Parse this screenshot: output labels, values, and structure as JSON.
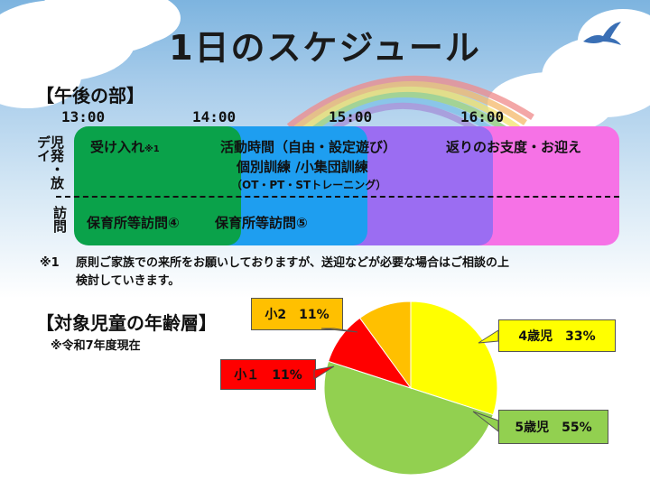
{
  "title": "1日のスケジュール",
  "afternoon": {
    "heading": "【午後の部】",
    "times": [
      "13:00",
      "14:00",
      "15:00",
      "16:00"
    ],
    "row_labels": {
      "top": "児発・放デイ",
      "bottom": "訪問"
    },
    "blocks": {
      "green_top": "受け入れ",
      "green_top_note": "※1",
      "blue_top_1": "活動時間（自由・設定遊び）",
      "blue_top_2": "個別訓練 /小集団訓練",
      "blue_top_3": "（OT・PT・STトレーニング）",
      "pink_top": "返りのお支度・お迎え",
      "green_bottom": "保育所等訪問④",
      "blue_bottom": "保育所等訪問⑤"
    },
    "colors": {
      "green": "#0aa24a",
      "blue": "#1e9ef0",
      "purple": "#9b6df2",
      "pink": "#f672e6"
    },
    "footnote_mark": "※1",
    "footnote_line1": "原則ご家族での来所をお願いしておりますが、送迎などが必要な場合はご相談の上",
    "footnote_line2": "検討していきます。"
  },
  "age": {
    "heading": "【対象児童の年齢層】",
    "note": "※令和7年度現在"
  },
  "chart_data": {
    "type": "pie",
    "slices": [
      {
        "label": "4歳児　33%",
        "value": 33,
        "color": "#ffff00"
      },
      {
        "label": "5歳児　55%",
        "value": 55,
        "color": "#92d050"
      },
      {
        "label": "小１　11%",
        "value": 11,
        "color": "#ff0000"
      },
      {
        "label": "小2　11%",
        "value": 11,
        "color": "#ffc000"
      }
    ]
  }
}
